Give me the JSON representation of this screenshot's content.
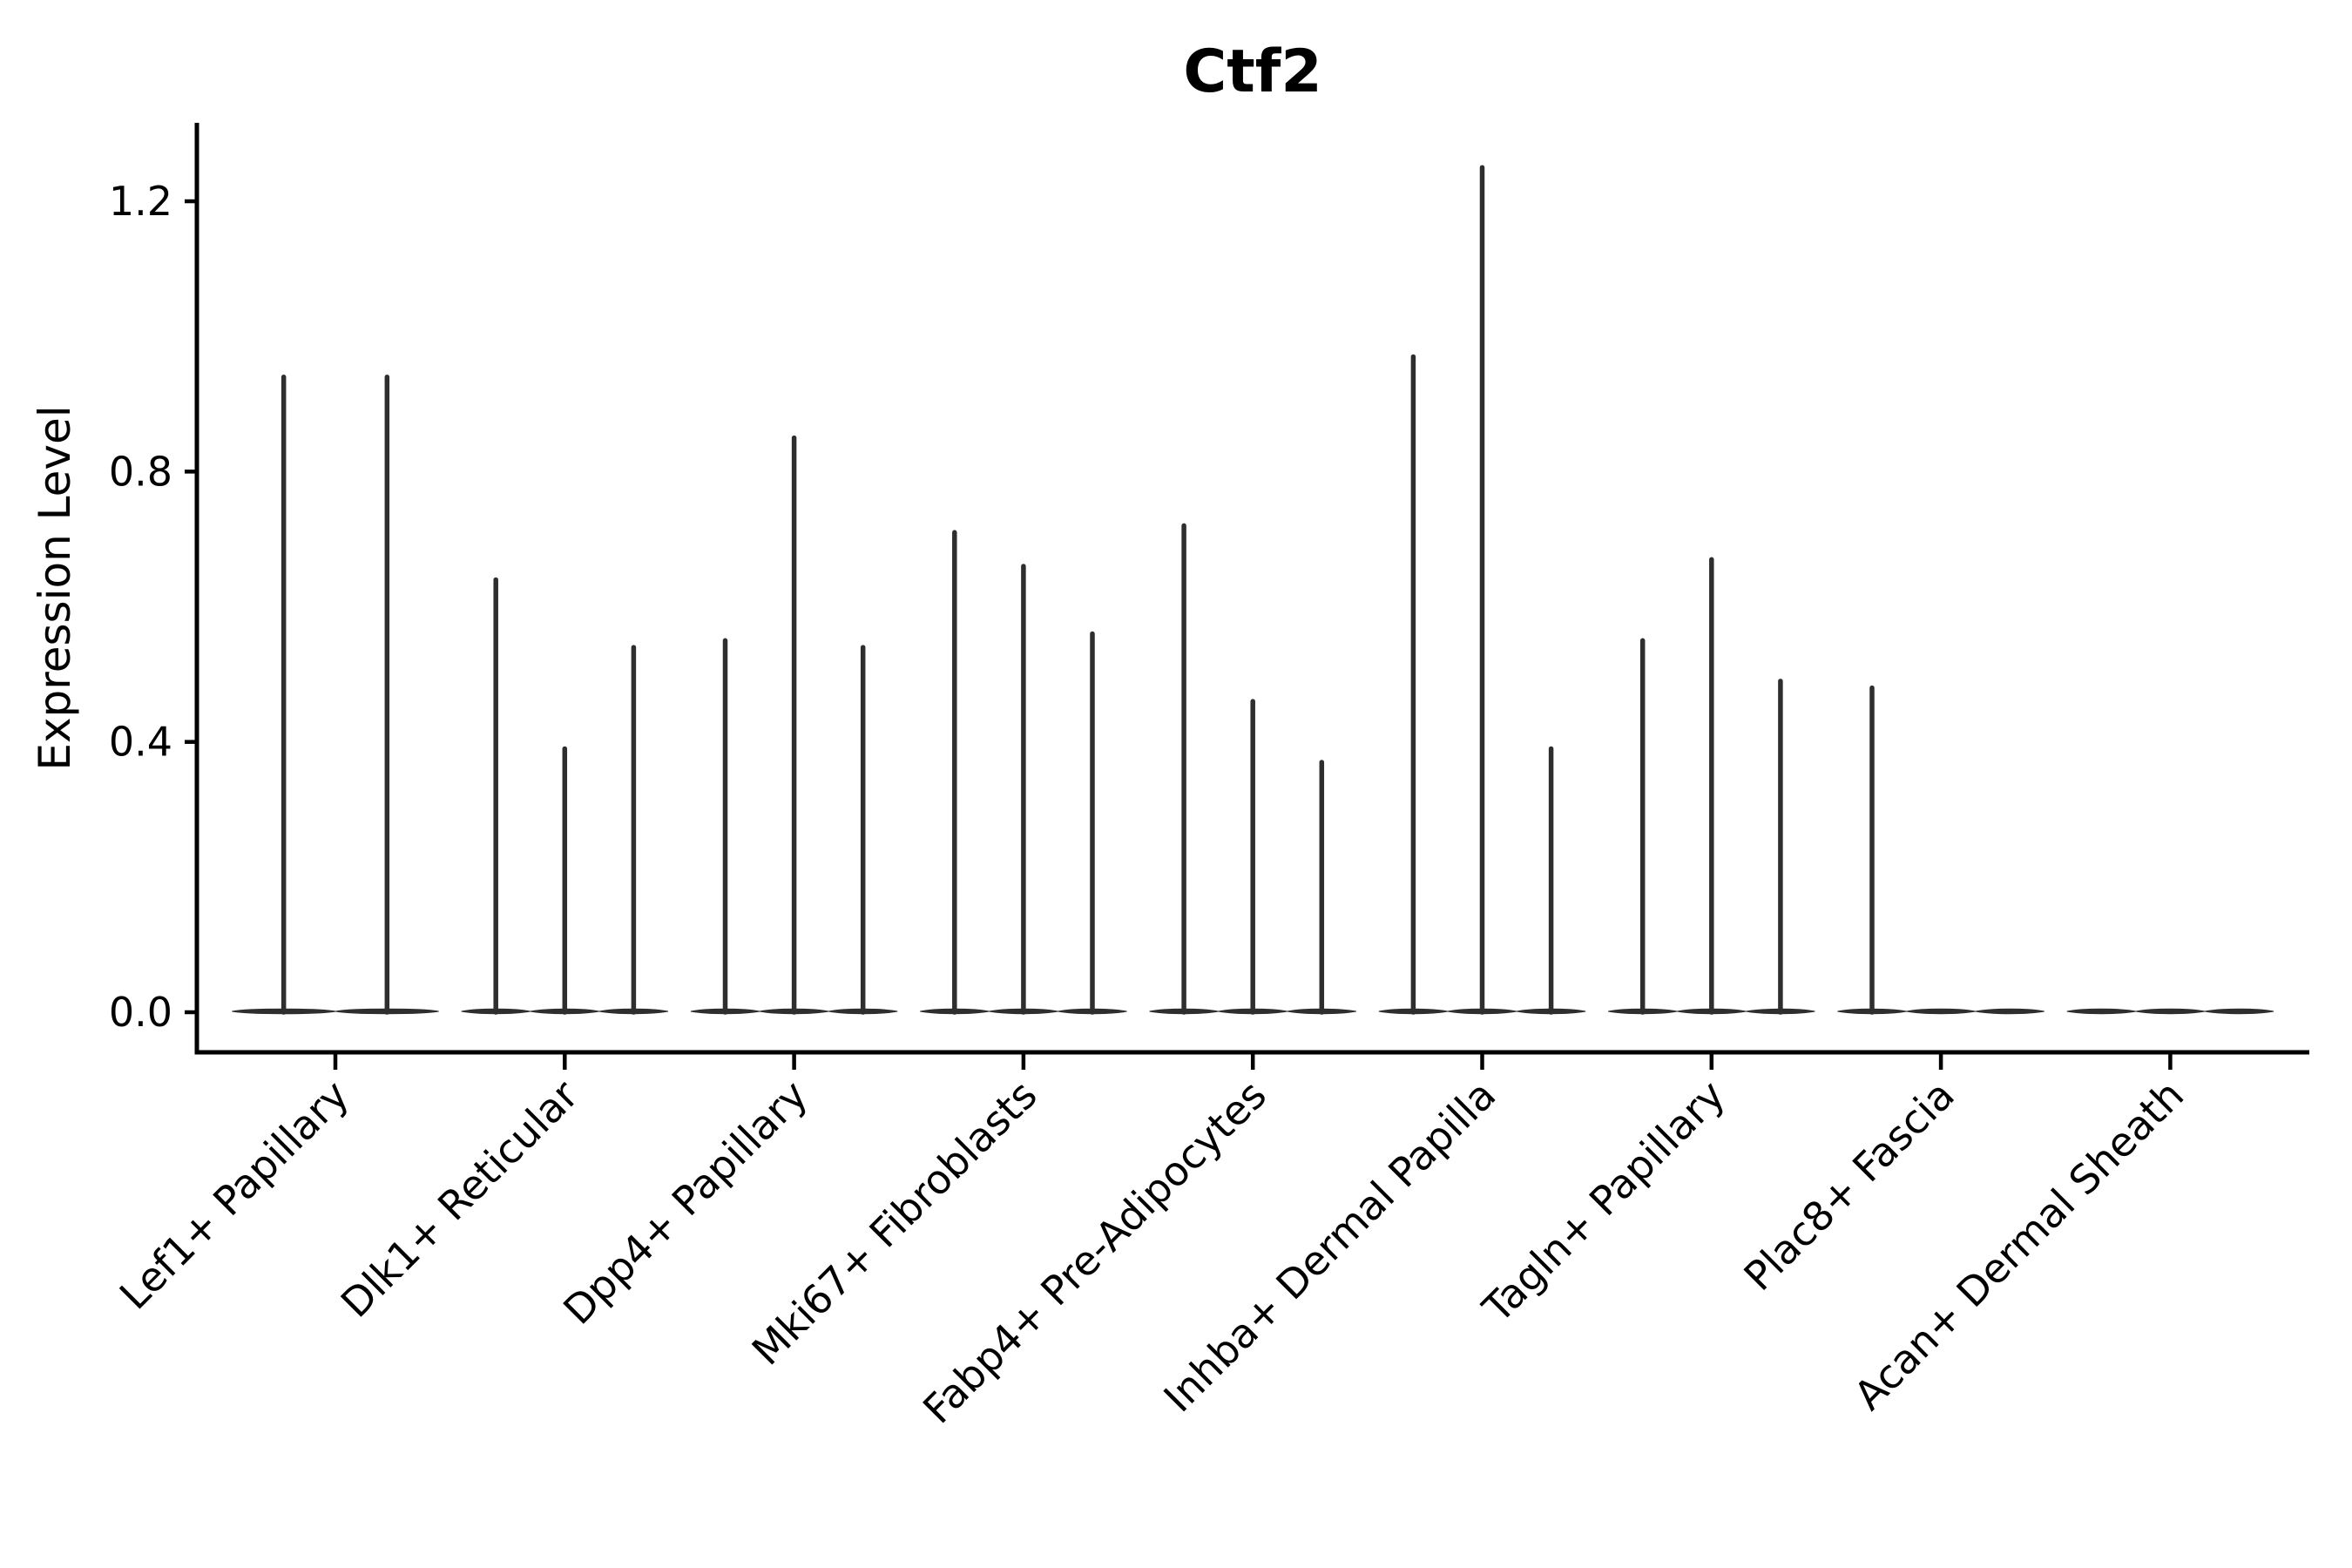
{
  "figure": {
    "background": "#ffffff"
  },
  "chart_data": {
    "type": "violin",
    "title": "Ctf2",
    "xlabel": "",
    "ylabel": "Expression Level",
    "ylim": [
      -0.06,
      1.32
    ],
    "yticks": [
      0.0,
      0.4,
      0.8,
      1.2
    ],
    "ytick_labels": [
      "0.0",
      "0.4",
      "0.8",
      "1.2"
    ],
    "grid": false,
    "legend": "none",
    "violin_color": "#2e2e2e",
    "axis_color": "#000000",
    "violin_shape_note": "each violin is a thin vertical spike from 0 up to its max value with a flat lens-shaped base at y=0; violins with max 0 show only the flat base",
    "categories": [
      "Lef1+ Papillary",
      "Dlk1+ Reticular",
      "Dpp4+ Papillary",
      "Mki67+ Fibroblasts",
      "Fabp4+ Pre-Adipocytes",
      "Inhba+ Dermal Papilla",
      "Tagln+ Papillary",
      "Plac8+ Fascia",
      "Acan+ Dermal Sheath"
    ],
    "series": [
      {
        "category": "Lef1+ Papillary",
        "violin_maxima": [
          0.94,
          0.94
        ]
      },
      {
        "category": "Dlk1+ Reticular",
        "violin_maxima": [
          0.64,
          0.39,
          0.54
        ]
      },
      {
        "category": "Dpp4+ Papillary",
        "violin_maxima": [
          0.55,
          0.85,
          0.54
        ]
      },
      {
        "category": "Mki67+ Fibroblasts",
        "violin_maxima": [
          0.71,
          0.66,
          0.56
        ]
      },
      {
        "category": "Fabp4+ Pre-Adipocytes",
        "violin_maxima": [
          0.72,
          0.46,
          0.37
        ]
      },
      {
        "category": "Inhba+ Dermal Papilla",
        "violin_maxima": [
          0.97,
          1.25,
          0.39
        ]
      },
      {
        "category": "Tagln+ Papillary",
        "violin_maxima": [
          0.55,
          0.67,
          0.49
        ]
      },
      {
        "category": "Plac8+ Fascia",
        "violin_maxima": [
          0.48,
          0.0,
          0.0
        ]
      },
      {
        "category": "Acan+ Dermal Sheath",
        "violin_maxima": [
          0.0,
          0.0,
          0.0
        ]
      }
    ]
  }
}
